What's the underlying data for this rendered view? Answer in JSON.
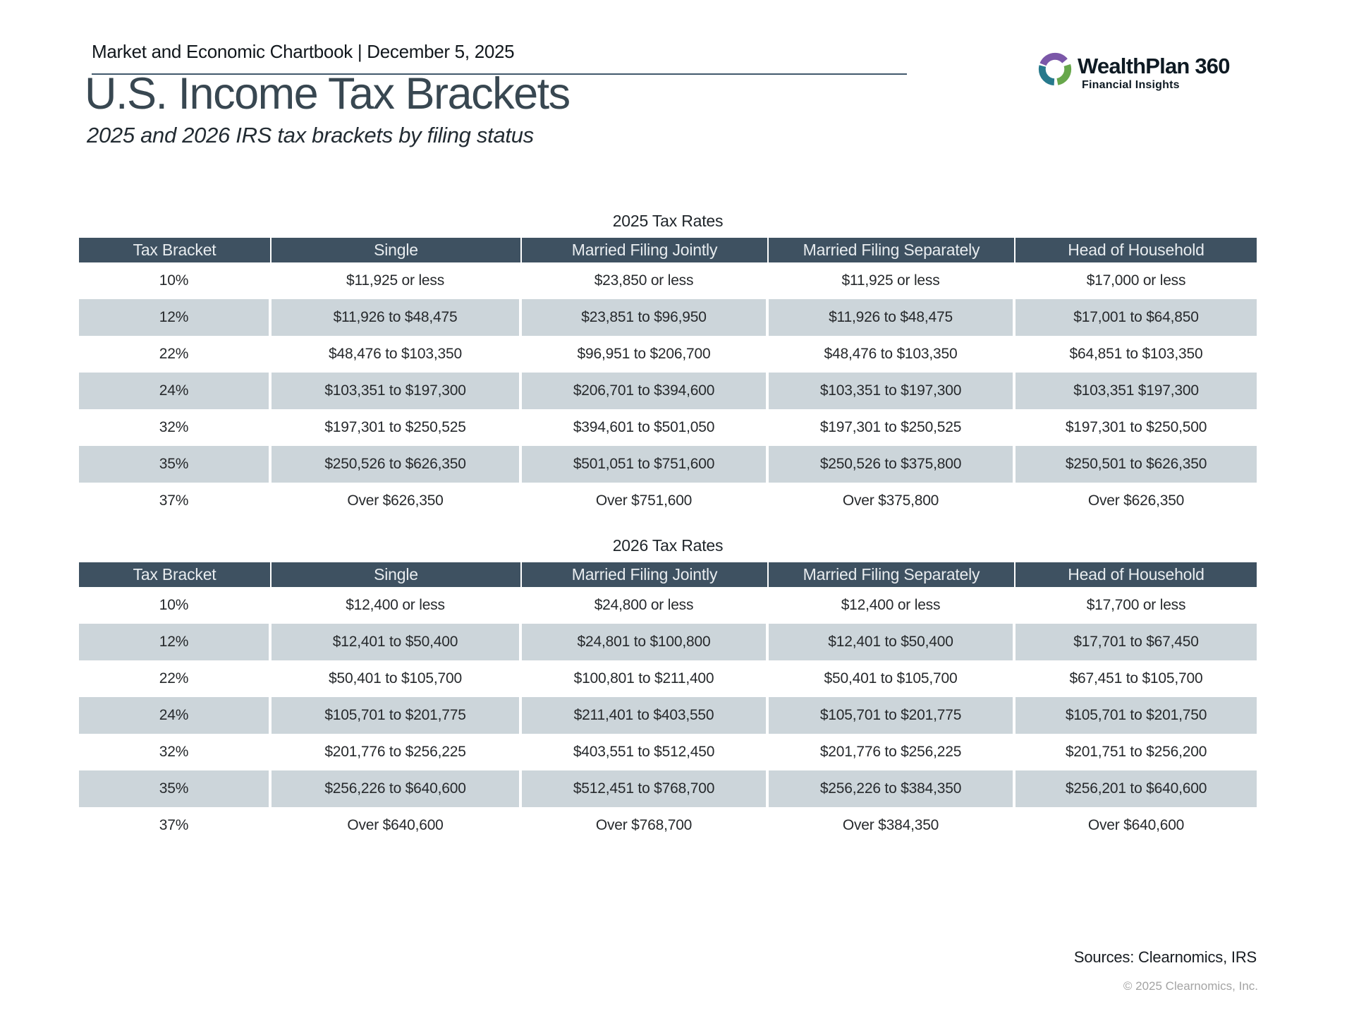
{
  "header": {
    "chartbook_title": "Market and Economic Chartbook | December 5, 2025"
  },
  "logo": {
    "brand": "WealthPlan 360",
    "tagline": "Financial Insights",
    "mark_colors": {
      "purple": "#7b57a8",
      "green": "#67a74b",
      "teal": "#27798c"
    }
  },
  "page": {
    "title": "U.S. Income Tax Brackets",
    "subtitle": "2025 and 2026 IRS tax brackets by filing status"
  },
  "tables": [
    {
      "caption": "2025 Tax Rates",
      "columns": [
        "Tax Bracket",
        "Single",
        "Married Filing Jointly",
        "Married Filing Separately",
        "Head of Household"
      ],
      "rows": [
        [
          "10%",
          "$11,925 or less",
          "$23,850 or less",
          "$11,925 or less",
          "$17,000 or less"
        ],
        [
          "12%",
          "$11,926 to $48,475",
          "$23,851 to $96,950",
          "$11,926 to $48,475",
          "$17,001 to $64,850"
        ],
        [
          "22%",
          "$48,476 to $103,350",
          "$96,951 to $206,700",
          "$48,476 to $103,350",
          "$64,851 to $103,350"
        ],
        [
          "24%",
          "$103,351 to $197,300",
          "$206,701 to $394,600",
          "$103,351 to $197,300",
          "$103,351 $197,300"
        ],
        [
          "32%",
          "$197,301 to $250,525",
          "$394,601 to $501,050",
          "$197,301 to $250,525",
          "$197,301 to $250,500"
        ],
        [
          "35%",
          "$250,526 to $626,350",
          "$501,051 to $751,600",
          "$250,526 to $375,800",
          "$250,501 to $626,350"
        ],
        [
          "37%",
          "Over $626,350",
          "Over $751,600",
          "Over $375,800",
          "Over $626,350"
        ]
      ]
    },
    {
      "caption": "2026 Tax Rates",
      "columns": [
        "Tax Bracket",
        "Single",
        "Married Filing Jointly",
        "Married Filing Separately",
        "Head of Household"
      ],
      "rows": [
        [
          "10%",
          "$12,400 or less",
          "$24,800 or less",
          "$12,400 or less",
          "$17,700 or less"
        ],
        [
          "12%",
          "$12,401 to $50,400",
          "$24,801 to $100,800",
          "$12,401 to $50,400",
          "$17,701 to $67,450"
        ],
        [
          "22%",
          "$50,401 to $105,700",
          "$100,801 to $211,400",
          "$50,401 to $105,700",
          "$67,451 to $105,700"
        ],
        [
          "24%",
          "$105,701 to $201,775",
          "$211,401 to $403,550",
          "$105,701 to $201,775",
          "$105,701 to $201,750"
        ],
        [
          "32%",
          "$201,776 to $256,225",
          "$403,551 to $512,450",
          "$201,776 to $256,225",
          "$201,751 to $256,200"
        ],
        [
          "35%",
          "$256,226 to $640,600",
          "$512,451 to $768,700",
          "$256,226 to $384,350",
          "$256,201 to $640,600"
        ],
        [
          "37%",
          "Over $640,600",
          "Over $768,700",
          "Over $384,350",
          "Over $640,600"
        ]
      ]
    }
  ],
  "footer": {
    "sources": "Sources: Clearnomics, IRS",
    "copyright": "© 2025 Clearnomics, Inc."
  },
  "colors": {
    "table_header_band": "#3e5161",
    "table_header_text": "#e8ecef",
    "row_shade": "#ccd5da",
    "title_text": "#384751",
    "rule": "#42596c",
    "copyright_text": "#a4a4a4"
  }
}
